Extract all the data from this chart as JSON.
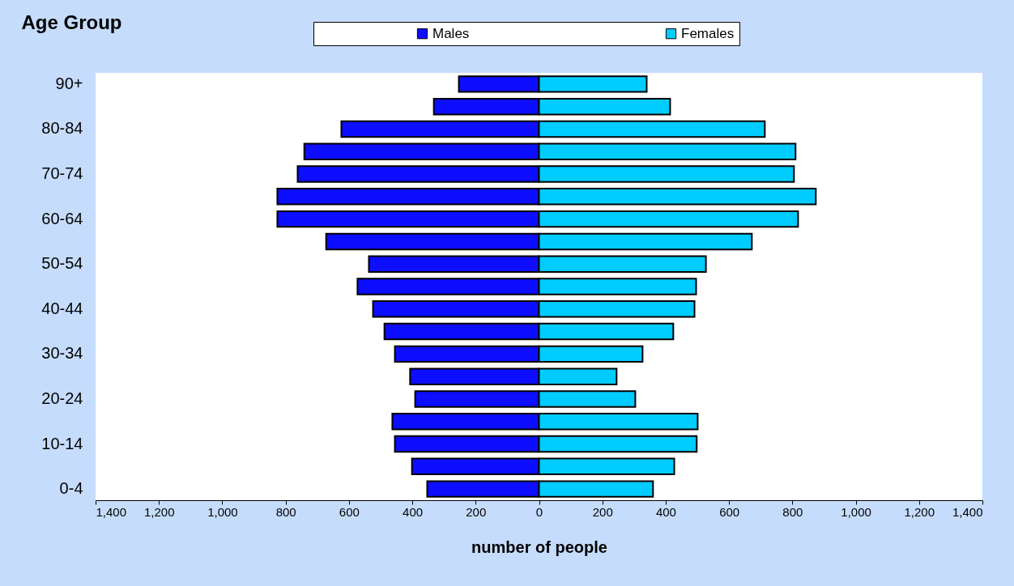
{
  "chart_data": {
    "type": "bar",
    "orientation": "horizontal",
    "ylabel": "Age Group",
    "xlabel": "number of people",
    "categories": [
      "90+",
      null,
      "80-84",
      null,
      "70-74",
      null,
      "60-64",
      null,
      "50-54",
      null,
      "40-44",
      null,
      "30-34",
      null,
      "20-24",
      null,
      "10-14",
      null,
      "0-4"
    ],
    "series": [
      {
        "name": "Males",
        "color": "#0d0dff",
        "values": [
          -253,
          -332,
          -624,
          -741,
          -762,
          -826,
          -826,
          -672,
          -537,
          -573,
          -524,
          -488,
          -455,
          -407,
          -391,
          -463,
          -455,
          -401,
          -353
        ]
      },
      {
        "name": "Females",
        "color": "#00ccff",
        "values": [
          340,
          414,
          713,
          810,
          805,
          874,
          818,
          672,
          527,
          496,
          491,
          424,
          327,
          245,
          304,
          501,
          498,
          427,
          360
        ]
      }
    ],
    "xlim": [
      -1400,
      1400
    ],
    "xticks": [
      {
        "value": -1400,
        "label": "1,400"
      },
      {
        "value": -1200,
        "label": "1,200"
      },
      {
        "value": -1000,
        "label": "1,000"
      },
      {
        "value": -800,
        "label": "800"
      },
      {
        "value": -600,
        "label": "600"
      },
      {
        "value": -400,
        "label": "400"
      },
      {
        "value": -200,
        "label": "200"
      },
      0,
      200,
      400,
      600,
      800,
      {
        "value": 1000,
        "label": "1,000"
      },
      {
        "value": 1200,
        "label": "1,200"
      },
      {
        "value": 1400,
        "label": "1,400"
      }
    ],
    "legend": "top",
    "grid": false,
    "stacked": true
  }
}
